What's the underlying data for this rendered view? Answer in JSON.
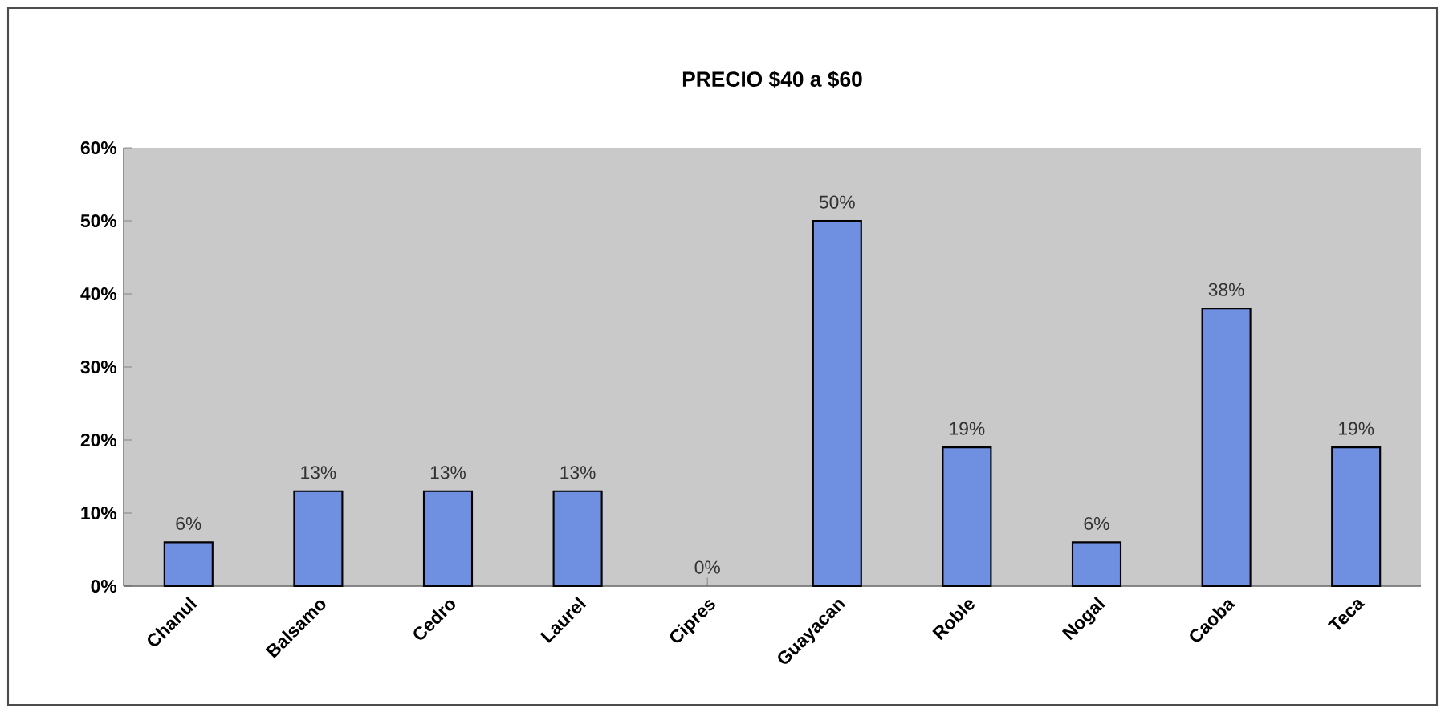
{
  "chart_data": {
    "type": "bar",
    "title": "PRECIO $40 a $60",
    "categories": [
      "Chanul",
      "Balsamo",
      "Cedro",
      "Laurel",
      "Cipres",
      "Guayacan",
      "Roble",
      "Nogal",
      "Caoba",
      "Teca"
    ],
    "values": [
      6,
      13,
      13,
      13,
      0,
      50,
      19,
      6,
      38,
      19
    ],
    "value_labels": [
      "6%",
      "13%",
      "13%",
      "13%",
      "0%",
      "50%",
      "19%",
      "6%",
      "38%",
      "19%"
    ],
    "color": "#6f8fe0",
    "ylim": [
      0,
      60
    ],
    "yticks": [
      {
        "value": 0,
        "label": "0%"
      },
      {
        "value": 10,
        "label": "10%"
      },
      {
        "value": 20,
        "label": "20%"
      },
      {
        "value": 30,
        "label": "30%"
      },
      {
        "value": 40,
        "label": "40%"
      },
      {
        "value": 50,
        "label": "50%"
      },
      {
        "value": 60,
        "label": "60%"
      }
    ],
    "grid": false
  }
}
